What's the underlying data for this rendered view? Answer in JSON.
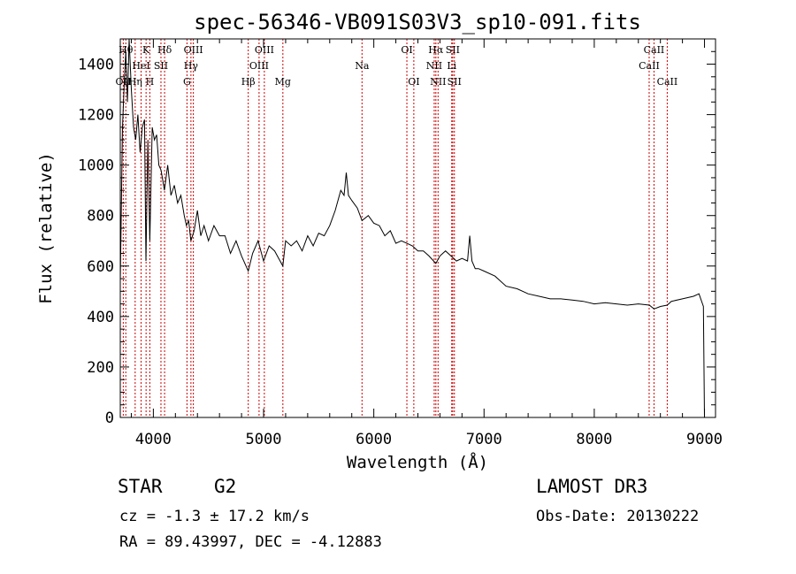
{
  "chart_data": {
    "type": "line",
    "title": "spec-56346-VB091S03V3_sp10-091.fits",
    "xlabel": "Wavelength (Å)",
    "ylabel": "Flux (relative)",
    "xlim": [
      3700,
      9100
    ],
    "ylim": [
      0,
      1500
    ],
    "xticks": [
      4000,
      5000,
      6000,
      7000,
      8000,
      9000
    ],
    "yticks": [
      0,
      200,
      400,
      600,
      800,
      1000,
      1200,
      1400
    ],
    "grid": false,
    "series": [
      {
        "name": "spectrum",
        "x": [
          3700,
          3720,
          3735,
          3750,
          3765,
          3780,
          3800,
          3820,
          3840,
          3860,
          3880,
          3900,
          3920,
          3933,
          3950,
          3968,
          3990,
          4010,
          4030,
          4050,
          4070,
          4100,
          4130,
          4160,
          4190,
          4220,
          4250,
          4280,
          4300,
          4320,
          4340,
          4370,
          4400,
          4430,
          4460,
          4500,
          4550,
          4600,
          4650,
          4700,
          4750,
          4800,
          4861,
          4900,
          4950,
          5000,
          5050,
          5100,
          5150,
          5175,
          5200,
          5250,
          5300,
          5350,
          5400,
          5450,
          5500,
          5550,
          5600,
          5650,
          5700,
          5730,
          5750,
          5770,
          5800,
          5850,
          5893,
          5950,
          6000,
          6050,
          6100,
          6150,
          6200,
          6250,
          6300,
          6350,
          6400,
          6450,
          6500,
          6563,
          6600,
          6650,
          6700,
          6750,
          6800,
          6850,
          6870,
          6890,
          6920,
          6950,
          7000,
          7100,
          7200,
          7300,
          7400,
          7500,
          7600,
          7700,
          7800,
          7900,
          8000,
          8100,
          8200,
          8300,
          8400,
          8500,
          8542,
          8600,
          8662,
          8700,
          8800,
          8900,
          8950,
          8990,
          9000
        ],
        "y": [
          540,
          1150,
          1320,
          1450,
          1250,
          1500,
          1300,
          1150,
          1100,
          1200,
          1050,
          1150,
          1180,
          620,
          1100,
          700,
          1150,
          1100,
          1120,
          1000,
          980,
          900,
          1000,
          880,
          920,
          850,
          880,
          800,
          760,
          780,
          700,
          740,
          820,
          720,
          760,
          700,
          760,
          720,
          720,
          650,
          700,
          640,
          580,
          650,
          700,
          620,
          680,
          660,
          620,
          600,
          700,
          680,
          700,
          660,
          720,
          680,
          730,
          720,
          760,
          820,
          900,
          880,
          970,
          880,
          860,
          830,
          780,
          800,
          770,
          760,
          720,
          740,
          690,
          700,
          690,
          680,
          660,
          660,
          640,
          610,
          640,
          660,
          640,
          620,
          630,
          620,
          720,
          620,
          590,
          590,
          580,
          560,
          520,
          510,
          490,
          480,
          470,
          470,
          465,
          460,
          450,
          455,
          450,
          445,
          450,
          445,
          430,
          440,
          445,
          460,
          470,
          480,
          490,
          440,
          0
        ]
      }
    ],
    "line_markers": [
      {
        "label": "OII",
        "x": 3727,
        "row": 2
      },
      {
        "label": "Hθ",
        "x": 3750,
        "row": 0
      },
      {
        "label": "Hη",
        "x": 3835,
        "row": 2
      },
      {
        "label": "HeI",
        "x": 3889,
        "row": 1
      },
      {
        "label": "K",
        "x": 3934,
        "row": 0
      },
      {
        "label": "H",
        "x": 3968,
        "row": 2
      },
      {
        "label": "SII",
        "x": 4069,
        "row": 1
      },
      {
        "label": "Hδ",
        "x": 4102,
        "row": 0
      },
      {
        "label": "G",
        "x": 4305,
        "row": 2
      },
      {
        "label": "Hγ",
        "x": 4341,
        "row": 1
      },
      {
        "label": "OIII",
        "x": 4363,
        "row": 0
      },
      {
        "label": "Hβ",
        "x": 4861,
        "row": 2
      },
      {
        "label": "OIII",
        "x": 4959,
        "row": 1
      },
      {
        "label": "OIII",
        "x": 5007,
        "row": 0
      },
      {
        "label": "Mg",
        "x": 5175,
        "row": 2
      },
      {
        "label": "Na",
        "x": 5893,
        "row": 1
      },
      {
        "label": "OI",
        "x": 6300,
        "row": 0
      },
      {
        "label": "OI",
        "x": 6363,
        "row": 2
      },
      {
        "label": "NII",
        "x": 6548,
        "row": 1
      },
      {
        "label": "Hα",
        "x": 6563,
        "row": 0
      },
      {
        "label": "NII",
        "x": 6583,
        "row": 2
      },
      {
        "label": "Li",
        "x": 6707,
        "row": 1
      },
      {
        "label": "SII",
        "x": 6716,
        "row": 0
      },
      {
        "label": "SII",
        "x": 6731,
        "row": 2
      },
      {
        "label": "CaII",
        "x": 8498,
        "row": 1
      },
      {
        "label": "CaII",
        "x": 8542,
        "row": 0
      },
      {
        "label": "CaII",
        "x": 8662,
        "row": 2
      }
    ],
    "marker_color": "#cc0000"
  },
  "footer": {
    "object_type": "STAR",
    "subclass": "G2",
    "redshift_text": "cz = -1.3 ± 17.2 km/s",
    "coords_text": "RA =  89.43997, DEC =  -4.12883",
    "survey": "LAMOST DR3",
    "obs_date": "Obs-Date: 20130222"
  }
}
